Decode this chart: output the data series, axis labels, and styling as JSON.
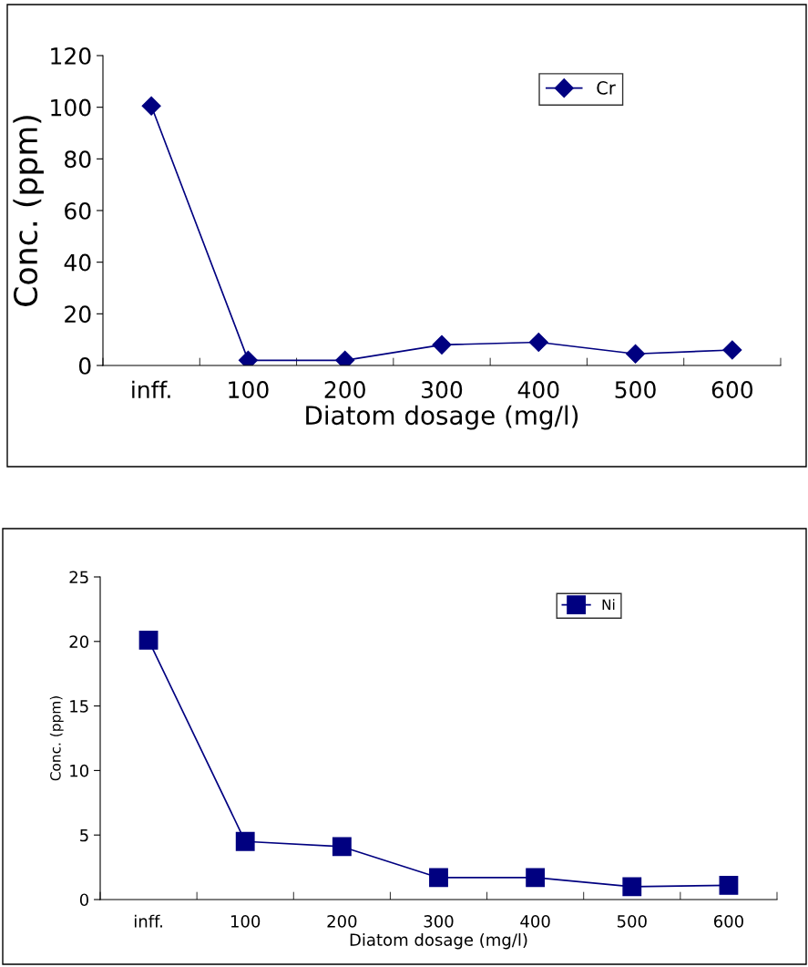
{
  "chart_data": [
    {
      "type": "line",
      "xlabel": "Diatom dosage (mg/l)",
      "ylabel": "Conc. (ppm)",
      "categories": [
        "inff.",
        "100",
        "200",
        "300",
        "400",
        "500",
        "600"
      ],
      "series": [
        {
          "name": "Cr",
          "color": "#000080",
          "values": [
            100.5,
            2,
            2,
            8,
            9,
            4.5,
            6
          ]
        }
      ],
      "ylim": [
        0,
        120
      ],
      "yticks": [
        0,
        20,
        40,
        60,
        80,
        100,
        120
      ],
      "grid": false,
      "legend": "top right",
      "marker": "diamond",
      "line_style": "solid"
    },
    {
      "type": "line",
      "xlabel": "Diatom dosage (mg/l)",
      "ylabel": "Conc. (ppm)",
      "categories": [
        "inff.",
        "100",
        "200",
        "300",
        "400",
        "500",
        "600"
      ],
      "series": [
        {
          "name": "Ni",
          "color": "#000080",
          "values": [
            20.1,
            4.5,
            4.1,
            1.7,
            1.7,
            1.0,
            1.1
          ]
        }
      ],
      "ylim": [
        0,
        25
      ],
      "yticks": [
        0,
        5,
        10,
        15,
        20,
        25
      ],
      "grid": false,
      "legend": "top right",
      "marker": "square",
      "line_style": "solid"
    }
  ]
}
